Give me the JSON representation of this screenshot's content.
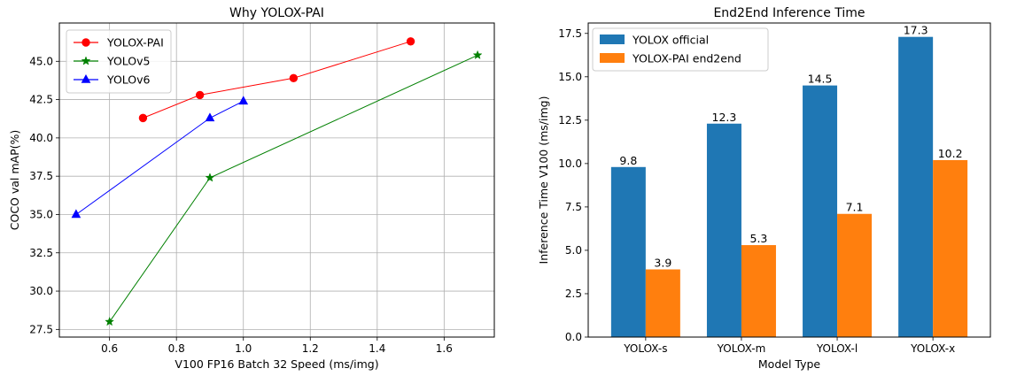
{
  "chart_data": [
    {
      "type": "line",
      "title": "Why YOLOX-PAI",
      "xlabel": "V100 FP16 Batch 32 Speed (ms/img)",
      "ylabel": "COCO val mAP(%)",
      "xlim": [
        0.45,
        1.75
      ],
      "ylim": [
        27.0,
        47.5
      ],
      "xticks": [
        0.6,
        0.8,
        1.0,
        1.2,
        1.4,
        1.6
      ],
      "xtick_labels": [
        "0.6",
        "0.8",
        "1.0",
        "1.2",
        "1.4",
        "1.6"
      ],
      "yticks": [
        27.5,
        30.0,
        32.5,
        35.0,
        37.5,
        40.0,
        42.5,
        45.0
      ],
      "ytick_labels": [
        "27.5",
        "30.0",
        "32.5",
        "35.0",
        "37.5",
        "40.0",
        "42.5",
        "45.0"
      ],
      "grid": true,
      "legend_position": "top-left",
      "series": [
        {
          "name": "YOLOX-PAI",
          "color": "#ff0000",
          "marker": "circle",
          "x": [
            0.7,
            0.87,
            1.15,
            1.5
          ],
          "y": [
            41.3,
            42.8,
            43.9,
            46.3
          ]
        },
        {
          "name": "YOLOv5",
          "color": "#008000",
          "marker": "star",
          "x": [
            0.6,
            0.9,
            1.7
          ],
          "y": [
            28.0,
            37.4,
            45.4
          ]
        },
        {
          "name": "YOLOv6",
          "color": "#0000ff",
          "marker": "triangle",
          "x": [
            0.5,
            0.9,
            1.0
          ],
          "y": [
            35.0,
            41.3,
            42.4
          ]
        }
      ]
    },
    {
      "type": "bar",
      "title": "End2End Inference Time",
      "xlabel": "Model Type",
      "ylabel": "Inference Time V100 (ms/img)",
      "categories": [
        "YOLOX-s",
        "YOLOX-m",
        "YOLOX-l",
        "YOLOX-x"
      ],
      "ylim": [
        0,
        18.1
      ],
      "yticks": [
        0.0,
        2.5,
        5.0,
        7.5,
        10.0,
        12.5,
        15.0,
        17.5
      ],
      "ytick_labels": [
        "0.0",
        "2.5",
        "5.0",
        "7.5",
        "10.0",
        "12.5",
        "15.0",
        "17.5"
      ],
      "grid": false,
      "legend_position": "top-left",
      "series": [
        {
          "name": "YOLOX official",
          "color": "#1f77b4",
          "values": [
            9.8,
            12.3,
            14.5,
            17.3
          ],
          "labels": [
            "9.8",
            "12.3",
            "14.5",
            "17.3"
          ]
        },
        {
          "name": "YOLOX-PAI end2end",
          "color": "#ff7f0e",
          "values": [
            3.9,
            5.3,
            7.1,
            10.2
          ],
          "labels": [
            "3.9",
            "5.3",
            "7.1",
            "10.2"
          ]
        }
      ]
    }
  ]
}
